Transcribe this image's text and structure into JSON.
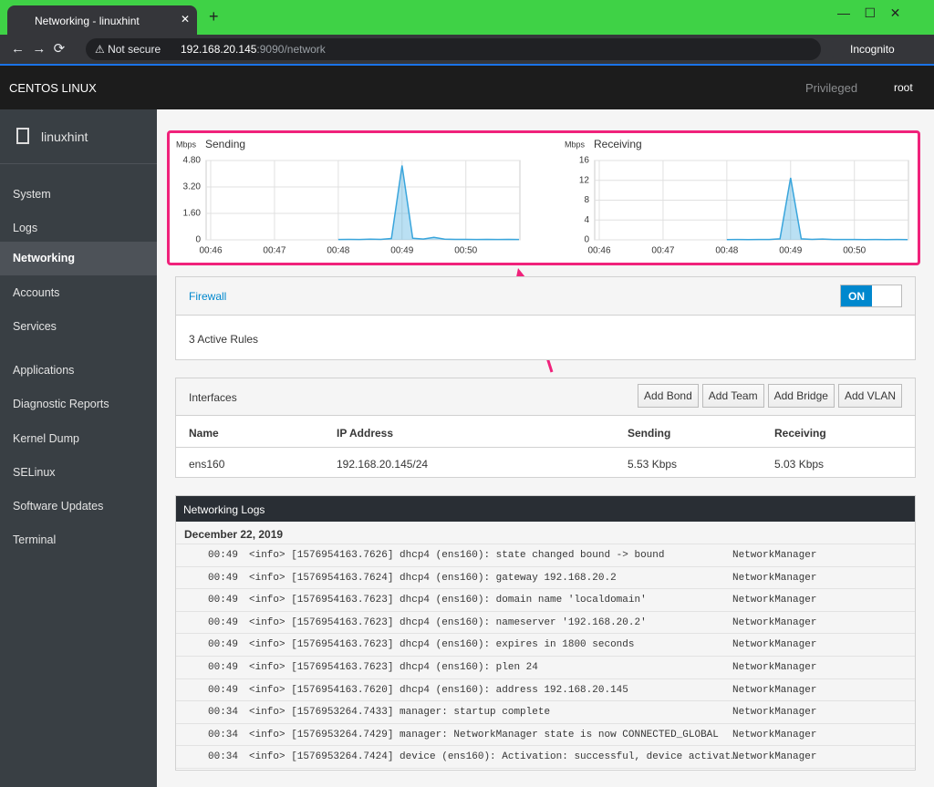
{
  "browser": {
    "tab_title": "Networking - linuxhint",
    "security": "Not secure",
    "url_host": "192.168.20.145",
    "url_path": ":9090/network",
    "profile": "Incognito"
  },
  "header": {
    "brand": "CENTOS LINUX",
    "privileged": "Privileged",
    "user": "root"
  },
  "sidebar": {
    "host": "linuxhint",
    "items": [
      "System",
      "Logs",
      "Networking",
      "Accounts",
      "Services",
      "Applications",
      "Diagnostic Reports",
      "Kernel Dump",
      "SELinux",
      "Software Updates",
      "Terminal"
    ]
  },
  "chart_data": [
    {
      "type": "line",
      "title": "Sending",
      "y_label": "Mbps",
      "color": "#39a5dc",
      "grid": true,
      "categories": [
        "00:46",
        null,
        null,
        null,
        null,
        null,
        "00:47",
        null,
        null,
        null,
        null,
        null,
        "00:48",
        null,
        null,
        null,
        null,
        null,
        "00:49",
        null,
        null,
        null,
        null,
        null,
        "00:50",
        null,
        null,
        null,
        null,
        null
      ],
      "values": [
        null,
        null,
        null,
        null,
        null,
        null,
        null,
        null,
        null,
        null,
        null,
        null,
        0.02,
        0.03,
        0.02,
        0.04,
        0.03,
        0.08,
        4.5,
        0.1,
        0.05,
        0.15,
        0.04,
        0.03,
        0.03,
        0.02,
        0.03,
        0.02,
        0.03,
        0.02
      ],
      "ylim": [
        0,
        4.8
      ],
      "yticks": [
        0,
        {
          "value": 1.6,
          "label": "1.60"
        },
        {
          "value": 3.2,
          "label": "3.20"
        },
        {
          "value": 4.8,
          "label": "4.80"
        }
      ]
    },
    {
      "type": "line",
      "title": "Receiving",
      "y_label": "Mbps",
      "color": "#39a5dc",
      "grid": true,
      "categories": [
        "00:46",
        null,
        null,
        null,
        null,
        null,
        "00:47",
        null,
        null,
        null,
        null,
        null,
        "00:48",
        null,
        null,
        null,
        null,
        null,
        "00:49",
        null,
        null,
        null,
        null,
        null,
        "00:50",
        null,
        null,
        null,
        null,
        null
      ],
      "values": [
        null,
        null,
        null,
        null,
        null,
        null,
        null,
        null,
        null,
        null,
        null,
        null,
        0.05,
        0.06,
        0.05,
        0.07,
        0.06,
        0.2,
        12.5,
        0.2,
        0.1,
        0.15,
        0.08,
        0.06,
        0.06,
        0.05,
        0.06,
        0.05,
        0.06,
        0.05
      ],
      "ylim": [
        0,
        16
      ],
      "yticks": [
        0,
        4,
        8,
        12,
        16
      ]
    }
  ],
  "firewall": {
    "title": "Firewall",
    "toggle": "ON",
    "rules": "3 Active Rules"
  },
  "interfaces": {
    "title": "Interfaces",
    "buttons": [
      "Add Bond",
      "Add Team",
      "Add Bridge",
      "Add VLAN"
    ],
    "columns": [
      "Name",
      "IP Address",
      "Sending",
      "Receiving"
    ],
    "rows": [
      [
        "ens160",
        "192.168.20.145/24",
        "5.53 Kbps",
        "5.03 Kbps"
      ]
    ]
  },
  "logs": {
    "title": "Networking Logs",
    "date": "December 22, 2019",
    "entries": [
      {
        "time": "00:49",
        "message": "<info> [1576954163.7626] dhcp4 (ens160): state changed bound -> bound",
        "source": "NetworkManager"
      },
      {
        "time": "00:49",
        "message": "<info> [1576954163.7624] dhcp4 (ens160): gateway 192.168.20.2",
        "source": "NetworkManager"
      },
      {
        "time": "00:49",
        "message": "<info> [1576954163.7623] dhcp4 (ens160): domain name 'localdomain'",
        "source": "NetworkManager"
      },
      {
        "time": "00:49",
        "message": "<info> [1576954163.7623] dhcp4 (ens160): nameserver '192.168.20.2'",
        "source": "NetworkManager"
      },
      {
        "time": "00:49",
        "message": "<info> [1576954163.7623] dhcp4 (ens160): expires in 1800 seconds",
        "source": "NetworkManager"
      },
      {
        "time": "00:49",
        "message": "<info> [1576954163.7623] dhcp4 (ens160): plen 24",
        "source": "NetworkManager"
      },
      {
        "time": "00:49",
        "message": "<info> [1576954163.7620] dhcp4 (ens160): address 192.168.20.145",
        "source": "NetworkManager"
      },
      {
        "time": "00:34",
        "message": "<info> [1576953264.7433] manager: startup complete",
        "source": "NetworkManager"
      },
      {
        "time": "00:34",
        "message": "<info> [1576953264.7429] manager: NetworkManager state is now CONNECTED_GLOBAL",
        "source": "NetworkManager"
      },
      {
        "time": "00:34",
        "message": "<info> [1576953264.7424] device (ens160): Activation: successful, device activat…",
        "source": "NetworkManager"
      }
    ]
  }
}
